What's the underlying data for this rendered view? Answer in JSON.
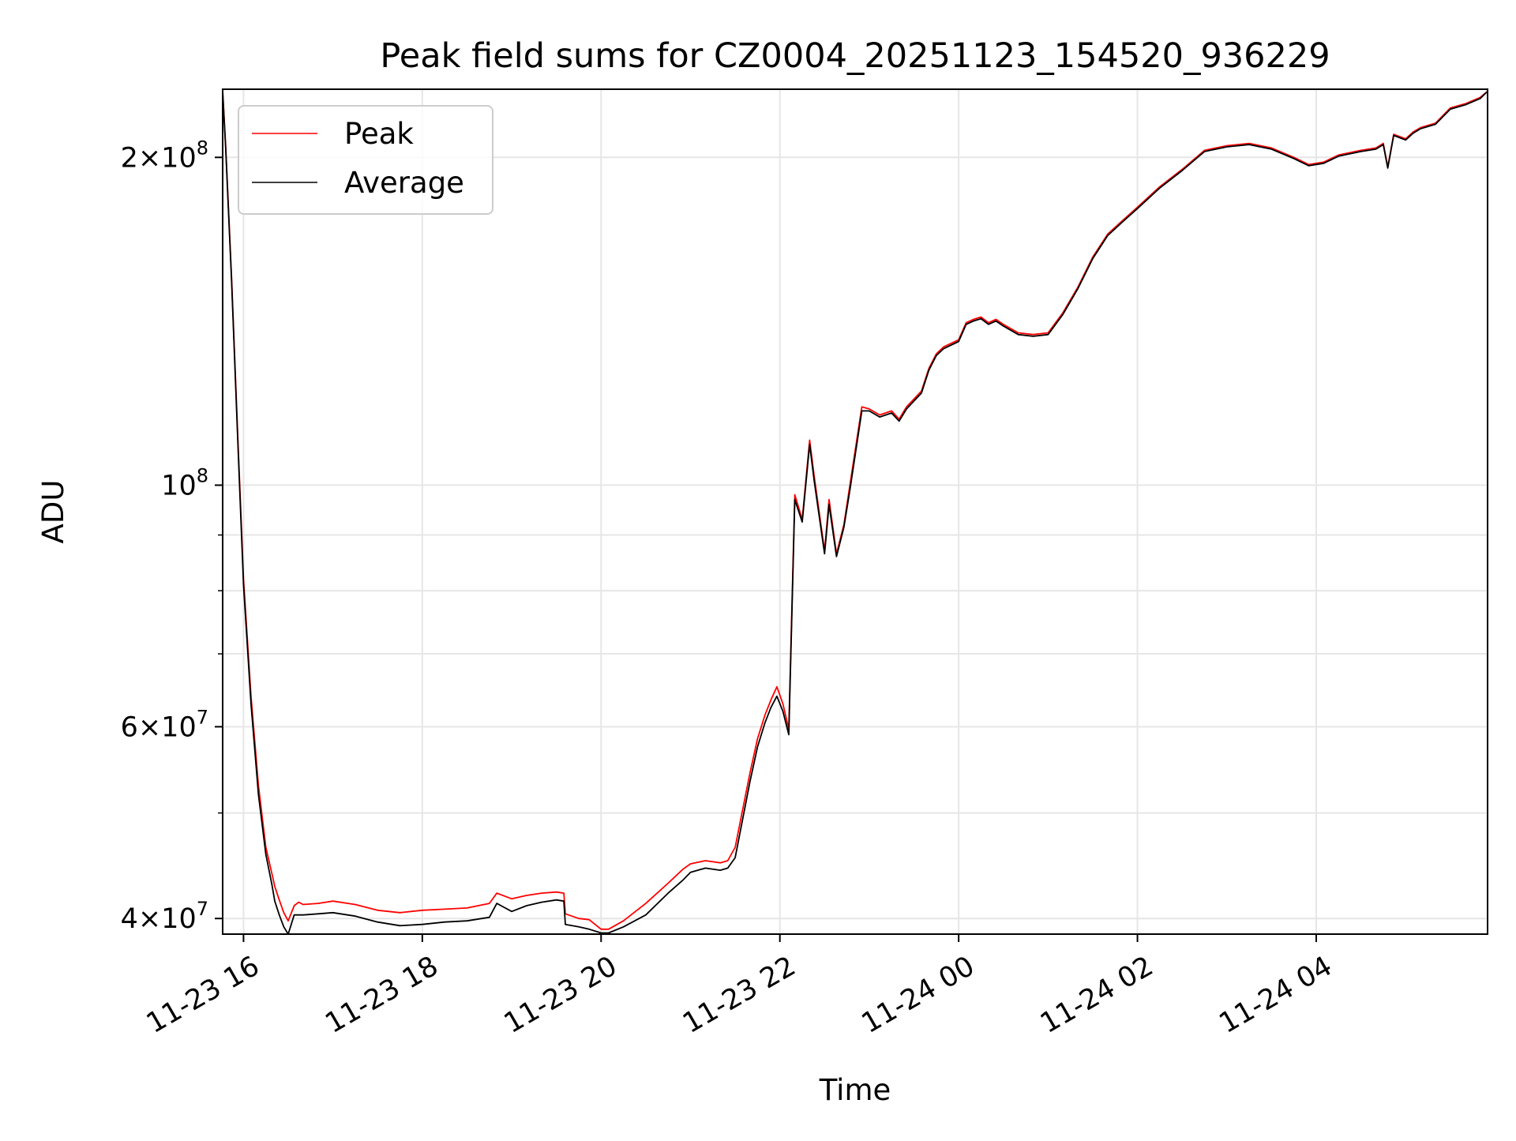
{
  "chart_data": {
    "type": "line",
    "title": "Peak field sums for CZ0004_20251123_154520_936229",
    "xlabel": "Time",
    "ylabel": "ADU",
    "yscale": "log",
    "grid": true,
    "legend_position": "upper-left",
    "xlim": [
      "2025-11-23 15:46",
      "2025-11-24 05:55"
    ],
    "ylim": [
      38700000,
      231000000
    ],
    "x_ticks": [
      {
        "value": "2025-11-23 16:00",
        "label": "11-23 16"
      },
      {
        "value": "2025-11-23 18:00",
        "label": "11-23 18"
      },
      {
        "value": "2025-11-23 20:00",
        "label": "11-23 20"
      },
      {
        "value": "2025-11-23 22:00",
        "label": "11-23 22"
      },
      {
        "value": "2025-11-24 00:00",
        "label": "11-24 00"
      },
      {
        "value": "2025-11-24 02:00",
        "label": "11-24 02"
      },
      {
        "value": "2025-11-24 04:00",
        "label": "11-24 04"
      }
    ],
    "y_ticks": [
      {
        "value": 40000000,
        "mantissa": "4",
        "exponent": "7"
      },
      {
        "value": 60000000,
        "mantissa": "6",
        "exponent": "7"
      },
      {
        "value": 100000000,
        "mantissa": "",
        "exponent": "8"
      },
      {
        "value": 200000000,
        "mantissa": "2",
        "exponent": "8"
      }
    ],
    "y_minor_ticks": [
      50000000,
      70000000,
      80000000,
      90000000
    ],
    "x": [
      "2025-11-23 15:46",
      "2025-11-23 15:48",
      "2025-11-23 15:52",
      "2025-11-23 15:56",
      "2025-11-23 16:00",
      "2025-11-23 16:05",
      "2025-11-23 16:10",
      "2025-11-23 16:15",
      "2025-11-23 16:19",
      "2025-11-23 16:21",
      "2025-11-23 16:24",
      "2025-11-23 16:27",
      "2025-11-23 16:30",
      "2025-11-23 16:34",
      "2025-11-23 16:37",
      "2025-11-23 16:40",
      "2025-11-23 16:50",
      "2025-11-23 17:00",
      "2025-11-23 17:15",
      "2025-11-23 17:30",
      "2025-11-23 17:45",
      "2025-11-23 18:00",
      "2025-11-23 18:15",
      "2025-11-23 18:30",
      "2025-11-23 18:45",
      "2025-11-23 18:50",
      "2025-11-23 19:00",
      "2025-11-23 19:10",
      "2025-11-23 19:20",
      "2025-11-23 19:30",
      "2025-11-23 19:35",
      "2025-11-23 19:36",
      "2025-11-23 19:45",
      "2025-11-23 19:52",
      "2025-11-23 20:00",
      "2025-11-23 20:05",
      "2025-11-23 20:15",
      "2025-11-23 20:30",
      "2025-11-23 20:45",
      "2025-11-23 20:55",
      "2025-11-23 21:00",
      "2025-11-23 21:10",
      "2025-11-23 21:20",
      "2025-11-23 21:25",
      "2025-11-23 21:30",
      "2025-11-23 21:40",
      "2025-11-23 21:45",
      "2025-11-23 21:50",
      "2025-11-23 21:54",
      "2025-11-23 21:58",
      "2025-11-23 22:02",
      "2025-11-23 22:06",
      "2025-11-23 22:10",
      "2025-11-23 22:15",
      "2025-11-23 22:20",
      "2025-11-23 22:23",
      "2025-11-23 22:30",
      "2025-11-23 22:33",
      "2025-11-23 22:38",
      "2025-11-23 22:43",
      "2025-11-23 22:47",
      "2025-11-23 22:55",
      "2025-11-23 23:00",
      "2025-11-23 23:07",
      "2025-11-23 23:15",
      "2025-11-23 23:20",
      "2025-11-23 23:25",
      "2025-11-23 23:35",
      "2025-11-23 23:40",
      "2025-11-23 23:45",
      "2025-11-23 23:50",
      "2025-11-24 00:00",
      "2025-11-24 00:05",
      "2025-11-24 00:10",
      "2025-11-24 00:15",
      "2025-11-24 00:20",
      "2025-11-24 00:25",
      "2025-11-24 00:30",
      "2025-11-24 00:40",
      "2025-11-24 00:50",
      "2025-11-24 01:00",
      "2025-11-24 01:10",
      "2025-11-24 01:20",
      "2025-11-24 01:30",
      "2025-11-24 01:40",
      "2025-11-24 01:50",
      "2025-11-24 02:00",
      "2025-11-24 02:15",
      "2025-11-24 02:30",
      "2025-11-24 02:45",
      "2025-11-24 03:00",
      "2025-11-24 03:15",
      "2025-11-24 03:30",
      "2025-11-24 03:45",
      "2025-11-24 03:55",
      "2025-11-24 04:05",
      "2025-11-24 04:15",
      "2025-11-24 04:30",
      "2025-11-24 04:40",
      "2025-11-24 04:45",
      "2025-11-24 04:48",
      "2025-11-24 04:52",
      "2025-11-24 05:00",
      "2025-11-24 05:05",
      "2025-11-24 05:10",
      "2025-11-24 05:20",
      "2025-11-24 05:30",
      "2025-11-24 05:40",
      "2025-11-24 05:50",
      "2025-11-24 05:55"
    ],
    "series": [
      {
        "name": "Peak",
        "color": "#ff0000",
        "values": [
          230000000,
          205000000,
          155000000,
          112000000,
          82000000,
          64000000,
          53000000,
          46500000,
          44000000,
          42800000,
          41600000,
          40500000,
          39800000,
          41100000,
          41400000,
          41200000,
          41300000,
          41500000,
          41200000,
          40700000,
          40500000,
          40700000,
          40800000,
          40900000,
          41300000,
          42200000,
          41700000,
          42000000,
          42200000,
          42300000,
          42200000,
          40400000,
          40000000,
          39900000,
          39100000,
          39100000,
          39800000,
          41300000,
          43100000,
          44400000,
          44900000,
          45200000,
          45000000,
          45200000,
          46500000,
          54500000,
          58500000,
          61500000,
          63500000,
          65300000,
          63000000,
          59700000,
          98000000,
          93000000,
          110000000,
          102000000,
          87000000,
          97000000,
          86500000,
          92000000,
          100000000,
          118000000,
          117500000,
          116000000,
          117000000,
          115000000,
          118000000,
          122000000,
          128000000,
          132000000,
          134000000,
          136000000,
          141000000,
          142000000,
          142700000,
          141000000,
          142000000,
          140500000,
          138000000,
          137500000,
          138000000,
          144000000,
          152000000,
          162000000,
          170000000,
          175000000,
          180000000,
          188000000,
          195000000,
          203000000,
          205000000,
          206000000,
          204000000,
          200000000,
          197000000,
          198000000,
          201000000,
          203000000,
          204000000,
          206000000,
          196000000,
          210000000,
          208000000,
          211000000,
          213000000,
          215000000,
          222000000,
          224000000,
          227000000,
          230000000
        ]
      },
      {
        "name": "Average",
        "color": "#000000",
        "values": [
          230000000,
          204000000,
          154000000,
          111000000,
          81000000,
          63000000,
          52000000,
          45800000,
          43000000,
          41500000,
          40300000,
          39300000,
          38700000,
          40300000,
          40300000,
          40300000,
          40400000,
          40500000,
          40200000,
          39700000,
          39400000,
          39500000,
          39700000,
          39800000,
          40100000,
          41300000,
          40600000,
          41100000,
          41400000,
          41600000,
          41500000,
          39500000,
          39300000,
          39100000,
          38800000,
          38800000,
          39300000,
          40300000,
          42200000,
          43400000,
          44100000,
          44500000,
          44300000,
          44500000,
          45500000,
          53500000,
          57500000,
          60500000,
          62500000,
          64000000,
          62000000,
          59000000,
          97000000,
          92500000,
          109000000,
          101000000,
          86500000,
          96000000,
          86000000,
          91500000,
          99000000,
          117000000,
          117000000,
          115500000,
          116500000,
          114500000,
          117500000,
          121500000,
          127500000,
          131500000,
          133500000,
          135500000,
          140500000,
          141500000,
          142200000,
          140500000,
          141500000,
          140000000,
          137500000,
          137000000,
          137500000,
          143500000,
          151500000,
          161500000,
          169500000,
          174500000,
          179500000,
          187500000,
          194500000,
          202500000,
          204500000,
          205500000,
          203500000,
          199500000,
          196500000,
          197500000,
          200500000,
          202500000,
          203500000,
          205500000,
          195500000,
          209500000,
          207500000,
          210500000,
          212500000,
          214500000,
          221500000,
          223500000,
          226500000,
          230000000
        ]
      }
    ]
  }
}
